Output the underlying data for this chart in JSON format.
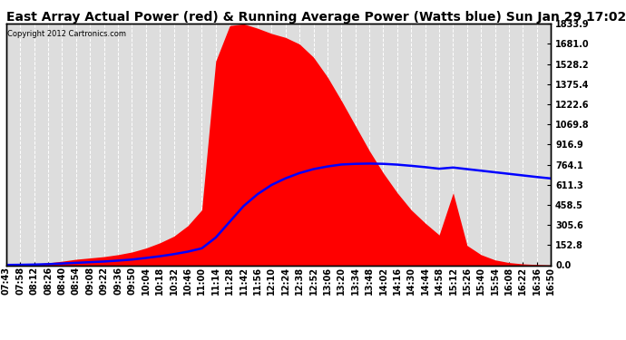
{
  "title": "East Array Actual Power (red) & Running Average Power (Watts blue) Sun Jan 29 17:02",
  "copyright": "Copyright 2012 Cartronics.com",
  "ylabel_right_ticks": [
    0.0,
    152.8,
    305.6,
    458.5,
    611.3,
    764.1,
    916.9,
    1069.8,
    1222.6,
    1375.4,
    1528.2,
    1681.0,
    1833.9
  ],
  "ymax": 1833.9,
  "ymin": 0.0,
  "bg_color": "#ffffff",
  "plot_bg_color": "#dddddd",
  "grid_color": "#ffffff",
  "actual_color": "#ff0000",
  "avg_color": "#0000ff",
  "title_fontsize": 10,
  "tick_fontsize": 7,
  "x_times": [
    "07:43",
    "07:58",
    "08:12",
    "08:26",
    "08:40",
    "08:54",
    "09:08",
    "09:22",
    "09:36",
    "09:50",
    "10:04",
    "10:18",
    "10:32",
    "10:46",
    "11:00",
    "11:14",
    "11:28",
    "11:42",
    "11:56",
    "12:10",
    "12:24",
    "12:38",
    "12:52",
    "13:06",
    "13:20",
    "13:34",
    "13:48",
    "14:02",
    "14:16",
    "14:30",
    "14:44",
    "14:58",
    "15:12",
    "15:26",
    "15:40",
    "15:54",
    "16:08",
    "16:22",
    "16:36",
    "16:50"
  ],
  "actual_power": [
    2,
    5,
    10,
    18,
    30,
    45,
    55,
    65,
    80,
    100,
    130,
    170,
    220,
    300,
    420,
    1550,
    1820,
    1833,
    1800,
    1760,
    1730,
    1680,
    1580,
    1430,
    1250,
    1060,
    870,
    700,
    550,
    420,
    320,
    230,
    550,
    150,
    80,
    40,
    20,
    10,
    5,
    2
  ],
  "avg_power": [
    2,
    3,
    5,
    8,
    13,
    18,
    23,
    28,
    35,
    43,
    55,
    68,
    84,
    103,
    128,
    210,
    330,
    450,
    540,
    610,
    660,
    700,
    730,
    750,
    765,
    770,
    772,
    770,
    764,
    755,
    745,
    733,
    742,
    730,
    718,
    706,
    694,
    682,
    670,
    659
  ]
}
